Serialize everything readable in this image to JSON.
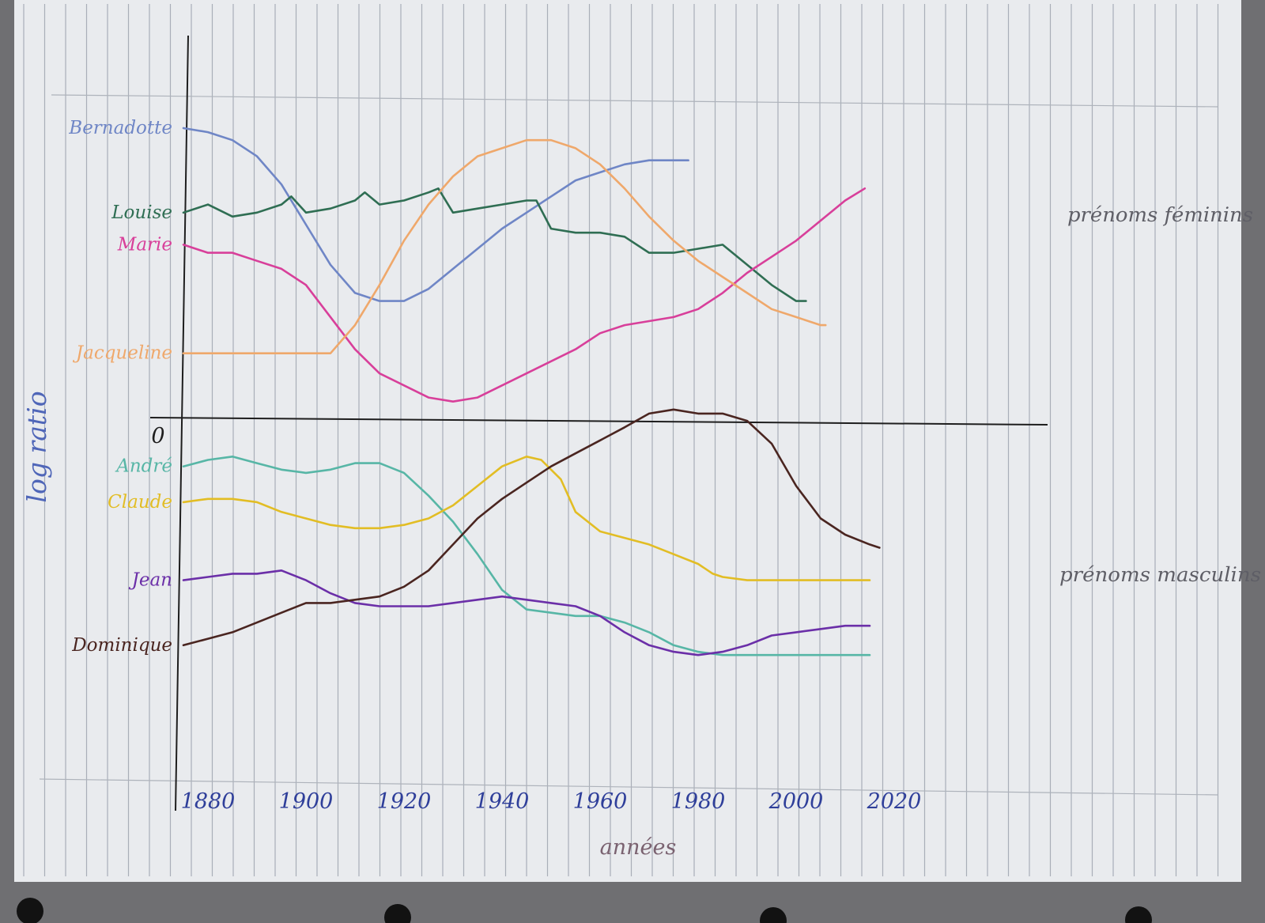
{
  "chart_data": {
    "type": "line",
    "xlabel": "années",
    "ylabel": "log ratio",
    "origin_label": "0",
    "x_ticks": [
      1880,
      1900,
      1920,
      1940,
      1960,
      1980,
      2000,
      2020
    ],
    "xlim": [
      1875,
      2040
    ],
    "ylim": [
      -5.8,
      4.8
    ],
    "grid": true,
    "group_labels": {
      "top": "prénoms féminins",
      "bottom": "prénoms masculins"
    },
    "series": [
      {
        "name": "Bernadotte",
        "color": "#6f86c6",
        "group": "top",
        "points": [
          [
            1875,
            3.6
          ],
          [
            1880,
            3.55
          ],
          [
            1885,
            3.45
          ],
          [
            1890,
            3.25
          ],
          [
            1895,
            2.9
          ],
          [
            1900,
            2.4
          ],
          [
            1905,
            1.9
          ],
          [
            1910,
            1.55
          ],
          [
            1915,
            1.45
          ],
          [
            1920,
            1.45
          ],
          [
            1925,
            1.6
          ],
          [
            1930,
            1.85
          ],
          [
            1935,
            2.1
          ],
          [
            1940,
            2.35
          ],
          [
            1945,
            2.55
          ],
          [
            1950,
            2.75
          ],
          [
            1955,
            2.95
          ],
          [
            1960,
            3.05
          ],
          [
            1965,
            3.15
          ],
          [
            1970,
            3.2
          ],
          [
            1978,
            3.2
          ]
        ]
      },
      {
        "name": "Louise",
        "color": "#2f6e53",
        "group": "top",
        "points": [
          [
            1875,
            2.55
          ],
          [
            1880,
            2.65
          ],
          [
            1885,
            2.5
          ],
          [
            1890,
            2.55
          ],
          [
            1895,
            2.65
          ],
          [
            1897,
            2.75
          ],
          [
            1900,
            2.55
          ],
          [
            1905,
            2.6
          ],
          [
            1910,
            2.7
          ],
          [
            1912,
            2.8
          ],
          [
            1915,
            2.65
          ],
          [
            1920,
            2.7
          ],
          [
            1925,
            2.8
          ],
          [
            1927,
            2.85
          ],
          [
            1930,
            2.55
          ],
          [
            1935,
            2.6
          ],
          [
            1940,
            2.65
          ],
          [
            1945,
            2.7
          ],
          [
            1947,
            2.7
          ],
          [
            1950,
            2.35
          ],
          [
            1955,
            2.3
          ],
          [
            1960,
            2.3
          ],
          [
            1965,
            2.25
          ],
          [
            1970,
            2.05
          ],
          [
            1975,
            2.05
          ],
          [
            1980,
            2.1
          ],
          [
            1985,
            2.15
          ],
          [
            1990,
            1.9
          ],
          [
            1995,
            1.65
          ],
          [
            2000,
            1.45
          ],
          [
            2002,
            1.45
          ]
        ]
      },
      {
        "name": "Marie",
        "color": "#d83f9a",
        "group": "top",
        "points": [
          [
            1875,
            2.15
          ],
          [
            1880,
            2.05
          ],
          [
            1885,
            2.05
          ],
          [
            1890,
            1.95
          ],
          [
            1895,
            1.85
          ],
          [
            1900,
            1.65
          ],
          [
            1905,
            1.25
          ],
          [
            1910,
            0.85
          ],
          [
            1915,
            0.55
          ],
          [
            1920,
            0.4
          ],
          [
            1925,
            0.25
          ],
          [
            1930,
            0.2
          ],
          [
            1935,
            0.25
          ],
          [
            1940,
            0.4
          ],
          [
            1945,
            0.55
          ],
          [
            1950,
            0.7
          ],
          [
            1955,
            0.85
          ],
          [
            1960,
            1.05
          ],
          [
            1965,
            1.15
          ],
          [
            1970,
            1.2
          ],
          [
            1975,
            1.25
          ],
          [
            1980,
            1.35
          ],
          [
            1985,
            1.55
          ],
          [
            1990,
            1.8
          ],
          [
            1995,
            2.0
          ],
          [
            2000,
            2.2
          ],
          [
            2005,
            2.45
          ],
          [
            2010,
            2.7
          ],
          [
            2014,
            2.85
          ]
        ]
      },
      {
        "name": "Jacqueline",
        "color": "#efa86b",
        "group": "top",
        "points": [
          [
            1875,
            0.8
          ],
          [
            1880,
            0.8
          ],
          [
            1890,
            0.8
          ],
          [
            1900,
            0.8
          ],
          [
            1905,
            0.8
          ],
          [
            1910,
            1.15
          ],
          [
            1915,
            1.65
          ],
          [
            1920,
            2.2
          ],
          [
            1925,
            2.65
          ],
          [
            1930,
            3.0
          ],
          [
            1935,
            3.25
          ],
          [
            1940,
            3.35
          ],
          [
            1945,
            3.45
          ],
          [
            1950,
            3.45
          ],
          [
            1955,
            3.35
          ],
          [
            1960,
            3.15
          ],
          [
            1965,
            2.85
          ],
          [
            1970,
            2.5
          ],
          [
            1975,
            2.2
          ],
          [
            1980,
            1.95
          ],
          [
            1985,
            1.75
          ],
          [
            1990,
            1.55
          ],
          [
            1995,
            1.35
          ],
          [
            2000,
            1.25
          ],
          [
            2005,
            1.15
          ],
          [
            2006,
            1.15
          ]
        ]
      },
      {
        "name": "André",
        "color": "#57b6a6",
        "group": "bottom",
        "points": [
          [
            1875,
            -0.75
          ],
          [
            1880,
            -0.65
          ],
          [
            1885,
            -0.6
          ],
          [
            1890,
            -0.7
          ],
          [
            1895,
            -0.8
          ],
          [
            1900,
            -0.85
          ],
          [
            1905,
            -0.8
          ],
          [
            1910,
            -0.7
          ],
          [
            1915,
            -0.7
          ],
          [
            1920,
            -0.85
          ],
          [
            1925,
            -1.2
          ],
          [
            1930,
            -1.6
          ],
          [
            1935,
            -2.1
          ],
          [
            1940,
            -2.65
          ],
          [
            1945,
            -2.95
          ],
          [
            1950,
            -3.0
          ],
          [
            1955,
            -3.05
          ],
          [
            1960,
            -3.05
          ],
          [
            1965,
            -3.15
          ],
          [
            1970,
            -3.3
          ],
          [
            1975,
            -3.5
          ],
          [
            1980,
            -3.6
          ],
          [
            1985,
            -3.65
          ],
          [
            1990,
            -3.65
          ],
          [
            2000,
            -3.65
          ],
          [
            2010,
            -3.65
          ],
          [
            2015,
            -3.65
          ]
        ]
      },
      {
        "name": "Claude",
        "color": "#e2bd24",
        "group": "bottom",
        "points": [
          [
            1875,
            -1.3
          ],
          [
            1880,
            -1.25
          ],
          [
            1885,
            -1.25
          ],
          [
            1890,
            -1.3
          ],
          [
            1895,
            -1.45
          ],
          [
            1900,
            -1.55
          ],
          [
            1905,
            -1.65
          ],
          [
            1910,
            -1.7
          ],
          [
            1915,
            -1.7
          ],
          [
            1920,
            -1.65
          ],
          [
            1925,
            -1.55
          ],
          [
            1930,
            -1.35
          ],
          [
            1935,
            -1.05
          ],
          [
            1940,
            -0.75
          ],
          [
            1945,
            -0.6
          ],
          [
            1948,
            -0.65
          ],
          [
            1952,
            -0.95
          ],
          [
            1955,
            -1.45
          ],
          [
            1960,
            -1.75
          ],
          [
            1965,
            -1.85
          ],
          [
            1970,
            -1.95
          ],
          [
            1975,
            -2.1
          ],
          [
            1980,
            -2.25
          ],
          [
            1983,
            -2.4
          ],
          [
            1985,
            -2.45
          ],
          [
            1990,
            -2.5
          ],
          [
            2000,
            -2.5
          ],
          [
            2010,
            -2.5
          ],
          [
            2015,
            -2.5
          ]
        ]
      },
      {
        "name": "Jean",
        "color": "#6b2fa8",
        "group": "bottom",
        "points": [
          [
            1875,
            -2.5
          ],
          [
            1880,
            -2.45
          ],
          [
            1885,
            -2.4
          ],
          [
            1890,
            -2.4
          ],
          [
            1895,
            -2.35
          ],
          [
            1900,
            -2.5
          ],
          [
            1905,
            -2.7
          ],
          [
            1910,
            -2.85
          ],
          [
            1915,
            -2.9
          ],
          [
            1920,
            -2.9
          ],
          [
            1925,
            -2.9
          ],
          [
            1930,
            -2.85
          ],
          [
            1935,
            -2.8
          ],
          [
            1940,
            -2.75
          ],
          [
            1945,
            -2.8
          ],
          [
            1950,
            -2.85
          ],
          [
            1955,
            -2.9
          ],
          [
            1960,
            -3.05
          ],
          [
            1965,
            -3.3
          ],
          [
            1970,
            -3.5
          ],
          [
            1975,
            -3.6
          ],
          [
            1980,
            -3.65
          ],
          [
            1985,
            -3.6
          ],
          [
            1990,
            -3.5
          ],
          [
            1995,
            -3.35
          ],
          [
            2000,
            -3.3
          ],
          [
            2005,
            -3.25
          ],
          [
            2010,
            -3.2
          ],
          [
            2015,
            -3.2
          ]
        ]
      },
      {
        "name": "Dominique",
        "color": "#4a2520",
        "group": "bottom",
        "points": [
          [
            1875,
            -3.5
          ],
          [
            1880,
            -3.4
          ],
          [
            1885,
            -3.3
          ],
          [
            1890,
            -3.15
          ],
          [
            1895,
            -3.0
          ],
          [
            1900,
            -2.85
          ],
          [
            1905,
            -2.85
          ],
          [
            1910,
            -2.8
          ],
          [
            1915,
            -2.75
          ],
          [
            1920,
            -2.6
          ],
          [
            1925,
            -2.35
          ],
          [
            1930,
            -1.95
          ],
          [
            1935,
            -1.55
          ],
          [
            1940,
            -1.25
          ],
          [
            1945,
            -1.0
          ],
          [
            1950,
            -0.75
          ],
          [
            1955,
            -0.55
          ],
          [
            1960,
            -0.35
          ],
          [
            1965,
            -0.15
          ],
          [
            1970,
            0.05
          ],
          [
            1975,
            0.1
          ],
          [
            1980,
            0.05
          ],
          [
            1985,
            0.05
          ],
          [
            1990,
            -0.05
          ],
          [
            1995,
            -0.4
          ],
          [
            2000,
            -1.05
          ],
          [
            2005,
            -1.55
          ],
          [
            2010,
            -1.8
          ],
          [
            2015,
            -1.95
          ],
          [
            2017,
            -2.0
          ]
        ]
      }
    ]
  }
}
